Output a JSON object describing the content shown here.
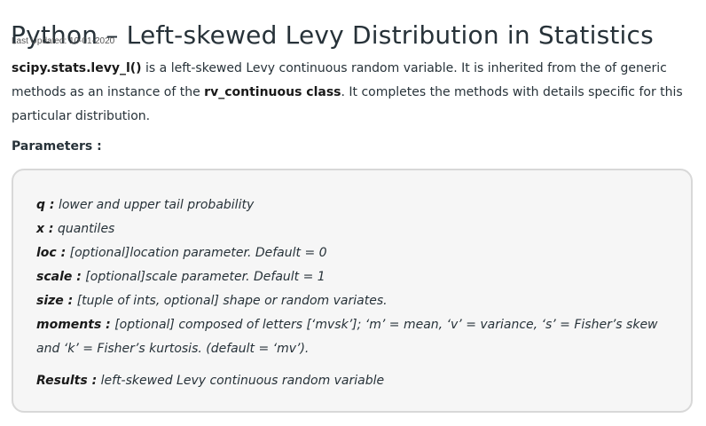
{
  "article": {
    "title": "Python – Left-skewed Levy Distribution in Statistics",
    "last_updated": "Last Updated: 10-01-2020",
    "intro": {
      "fn_name": "scipy.stats.levy_l()",
      "part1": " is a left-skewed Levy continuous random variable. It is inherited from the of generic methods as an instance of the ",
      "class_name": "rv_continuous class",
      "part2": ". It completes the methods with details specific for this particular distribution."
    },
    "parameters_heading": "Parameters :",
    "parameters": [
      {
        "name": "q :",
        "desc": " lower and upper tail probability"
      },
      {
        "name": "x :",
        "desc": " quantiles"
      },
      {
        "name": "loc :",
        "desc": " [optional]location parameter. Default = 0"
      },
      {
        "name": "scale :",
        "desc": " [optional]scale parameter. Default = 1"
      },
      {
        "name": "size :",
        "desc": " [tuple of ints, optional] shape or random variates."
      },
      {
        "name": "moments :",
        "desc": " [optional] composed of letters [‘mvsk’]; ‘m’ = mean, ‘v’ = variance, ‘s’ = Fisher’s skew and ‘k’ = Fisher’s kurtosis. (default = ‘mv’)."
      }
    ],
    "results": {
      "name": "Results :",
      "desc": " left-skewed Levy continuous random variable"
    }
  }
}
